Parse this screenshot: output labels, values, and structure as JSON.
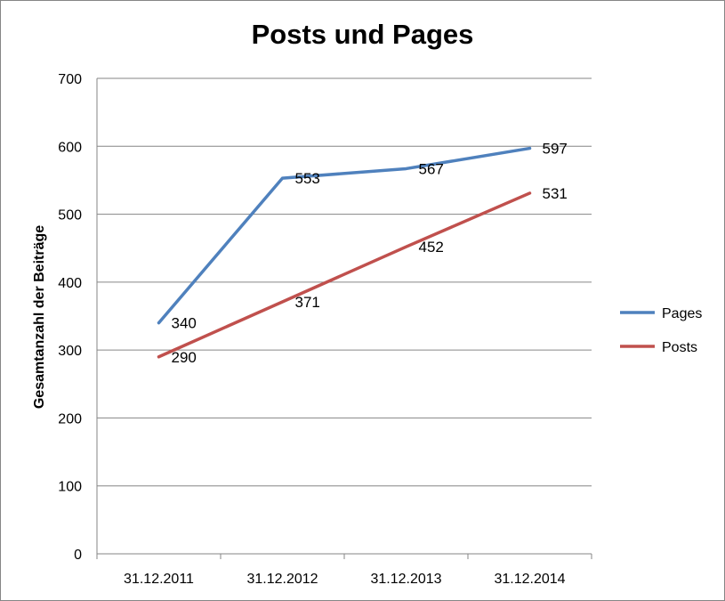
{
  "chart_data": {
    "type": "line",
    "title": "Posts und Pages",
    "xlabel": "",
    "ylabel": "Gesamtanzahl der Beiträge",
    "categories": [
      "31.12.2011",
      "31.12.2012",
      "31.12.2013",
      "31.12.2014"
    ],
    "ylim": [
      0,
      700
    ],
    "yticks": [
      "0",
      "100",
      "200",
      "300",
      "400",
      "500",
      "600",
      "700"
    ],
    "grid": true,
    "legend": "right",
    "series": [
      {
        "name": "Pages",
        "color": "#4f81bd",
        "values": [
          340,
          553,
          567,
          597
        ]
      },
      {
        "name": "Posts",
        "color": "#c0504d",
        "values": [
          290,
          371,
          452,
          531
        ]
      }
    ]
  }
}
